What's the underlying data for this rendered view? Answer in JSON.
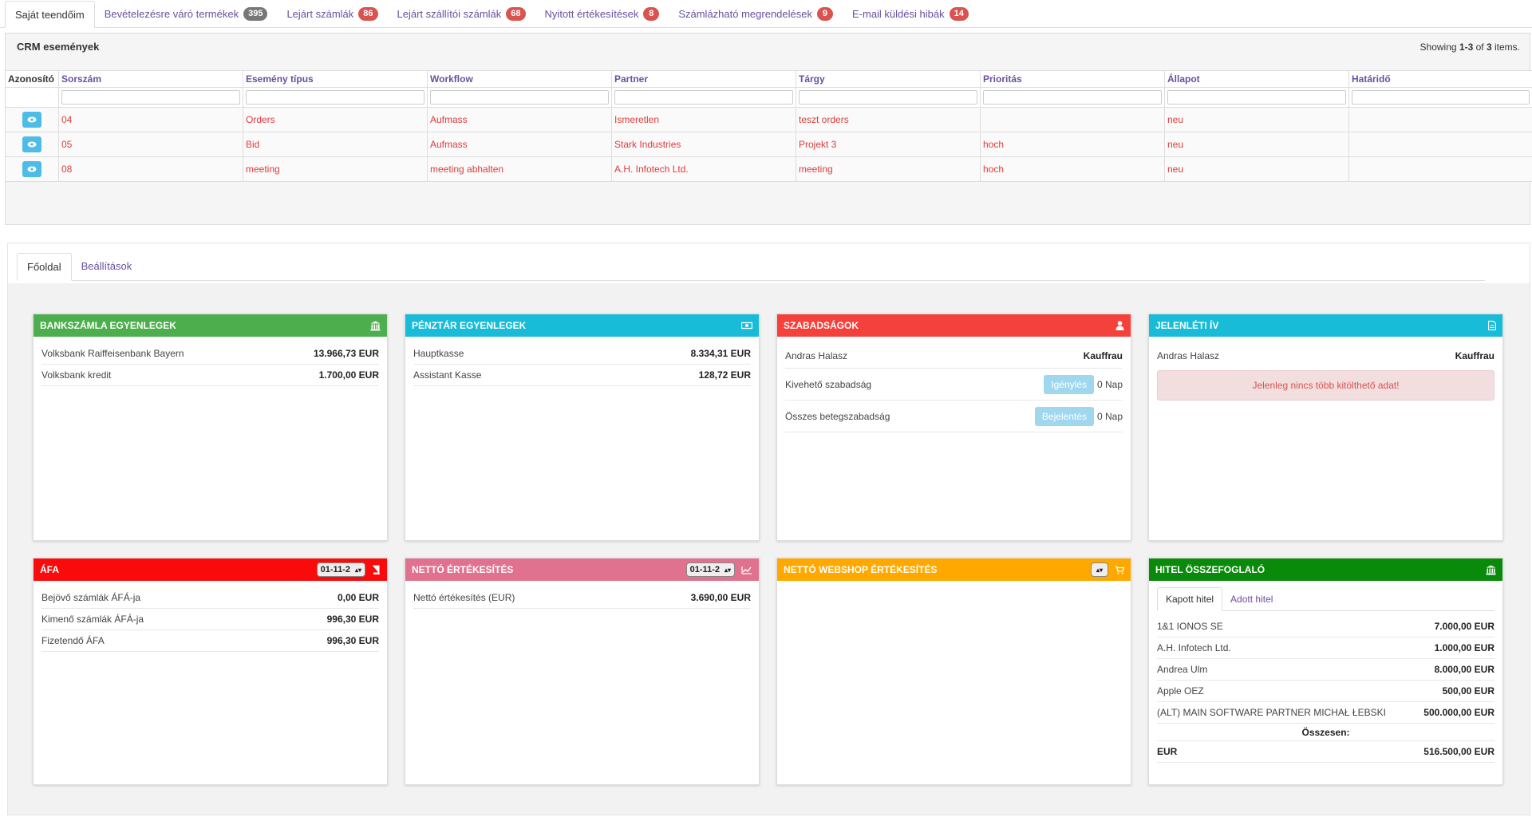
{
  "top_tabs": [
    {
      "label": "Saját teendőim",
      "badge": ""
    },
    {
      "label": "Bevételezésre váró termékek",
      "badge": "395"
    },
    {
      "label": "Lejárt számlák",
      "badge": "86"
    },
    {
      "label": "Lejárt szállítói számlák",
      "badge": "68"
    },
    {
      "label": "Nyitott értékesítések",
      "badge": "8"
    },
    {
      "label": "Számlázható megrendelések",
      "badge": "9"
    },
    {
      "label": "E-mail küldési hibák",
      "badge": "14"
    }
  ],
  "crm": {
    "title": "CRM események",
    "summary_prefix": "Showing",
    "summary_range": "1-3",
    "summary_of": "of",
    "summary_total": "3",
    "summary_suffix": "items.",
    "columns": [
      "Azonosító",
      "Sorszám",
      "Esemény típus",
      "Workflow",
      "Partner",
      "Tárgy",
      "Prioritás",
      "Állapot",
      "Határidő"
    ],
    "rows": [
      {
        "sorszam": "04",
        "tipus": "Orders",
        "workflow": "Aufmass",
        "partner": "Ismeretlen",
        "targy": "teszt orders",
        "prioritas": "",
        "allapot": "neu",
        "hatarido": ""
      },
      {
        "sorszam": "05",
        "tipus": "Bid",
        "workflow": "Aufmass",
        "partner": "Stark Industries",
        "targy": "Projekt 3",
        "prioritas": "hoch",
        "allapot": "neu",
        "hatarido": ""
      },
      {
        "sorszam": "08",
        "tipus": "meeting",
        "workflow": "meeting abhalten",
        "partner": "A.H. Infotech Ltd.",
        "targy": "meeting",
        "prioritas": "hoch",
        "allapot": "neu",
        "hatarido": ""
      }
    ]
  },
  "sub_tabs": [
    "Főoldal",
    "Beállítások"
  ],
  "cards": {
    "bank": {
      "title": "BANKSZÁMLA EGYENLEGEK",
      "color": "#4cae4c",
      "rows": [
        {
          "label": "Volksbank Raiffeisenbank Bayern",
          "value": "13.966,73 EUR"
        },
        {
          "label": "Volksbank kredit",
          "value": "1.700,00 EUR"
        }
      ]
    },
    "penztar": {
      "title": "PÉNZTÁR EGYENLEGEK",
      "color": "#18bcd8",
      "rows": [
        {
          "label": "Hauptkasse",
          "value": "8.334,31 EUR"
        },
        {
          "label": "Assistant Kasse",
          "value": "128,72 EUR"
        }
      ]
    },
    "szabadsag": {
      "title": "SZABADSÁGOK",
      "color": "#f5413b",
      "name": "Andras Halasz",
      "company": "Kauffrau",
      "row1_label": "Kivehető szabadság",
      "row1_button": "Igénylés",
      "row1_value": "0 Nap",
      "row2_label": "Összes betegszabadság",
      "row2_button": "Bejelentés",
      "row2_value": "0 Nap"
    },
    "jelenleti": {
      "title": "JELENLÉTI ÍV",
      "color": "#18bcd8",
      "name": "Andras Halasz",
      "company": "Kauffrau",
      "alert": "Jelenleg nincs több kitölthető adat!"
    },
    "afa": {
      "title": "ÁFA",
      "color": "#fa0a0a",
      "select": "01-11-2",
      "rows": [
        {
          "label": "Bejövő számlák ÁFÁ-ja",
          "value": "0,00 EUR"
        },
        {
          "label": "Kimenő számlák ÁFÁ-ja",
          "value": "996,30 EUR"
        },
        {
          "label": "Fizetendő ÁFA",
          "value": "996,30 EUR"
        }
      ]
    },
    "netto": {
      "title": "NETTÓ ÉRTÉKESÍTÉS",
      "color": "#e0728f",
      "select": "01-11-2",
      "rows": [
        {
          "label": "Nettó értékesítés (EUR)",
          "value": "3.690,00 EUR"
        }
      ]
    },
    "webshop": {
      "title": "NETTÓ WEBSHOP ÉRTÉKESÍTÉS",
      "color": "#ffa800"
    },
    "hitel": {
      "title": "HITEL ÖSSZEFOGLALÓ",
      "color": "#0a8a0a",
      "tabs": [
        "Kapott hitel",
        "Adott hitel"
      ],
      "rows": [
        {
          "label": "1&1 IONOS SE",
          "value": "7.000,00 EUR"
        },
        {
          "label": "A.H. Infotech Ltd.",
          "value": "1.000,00 EUR"
        },
        {
          "label": "Andrea Ulm",
          "value": "8.000,00 EUR"
        },
        {
          "label": "Apple OEZ",
          "value": "500,00 EUR"
        },
        {
          "label": "(ALT) MAIN SOFTWARE PARTNER MICHAŁ ŁEBSKI",
          "value": "500.000,00 EUR"
        }
      ],
      "total_label": "Összesen:",
      "total_currency": "EUR",
      "total_value": "516.500,00 EUR"
    }
  }
}
